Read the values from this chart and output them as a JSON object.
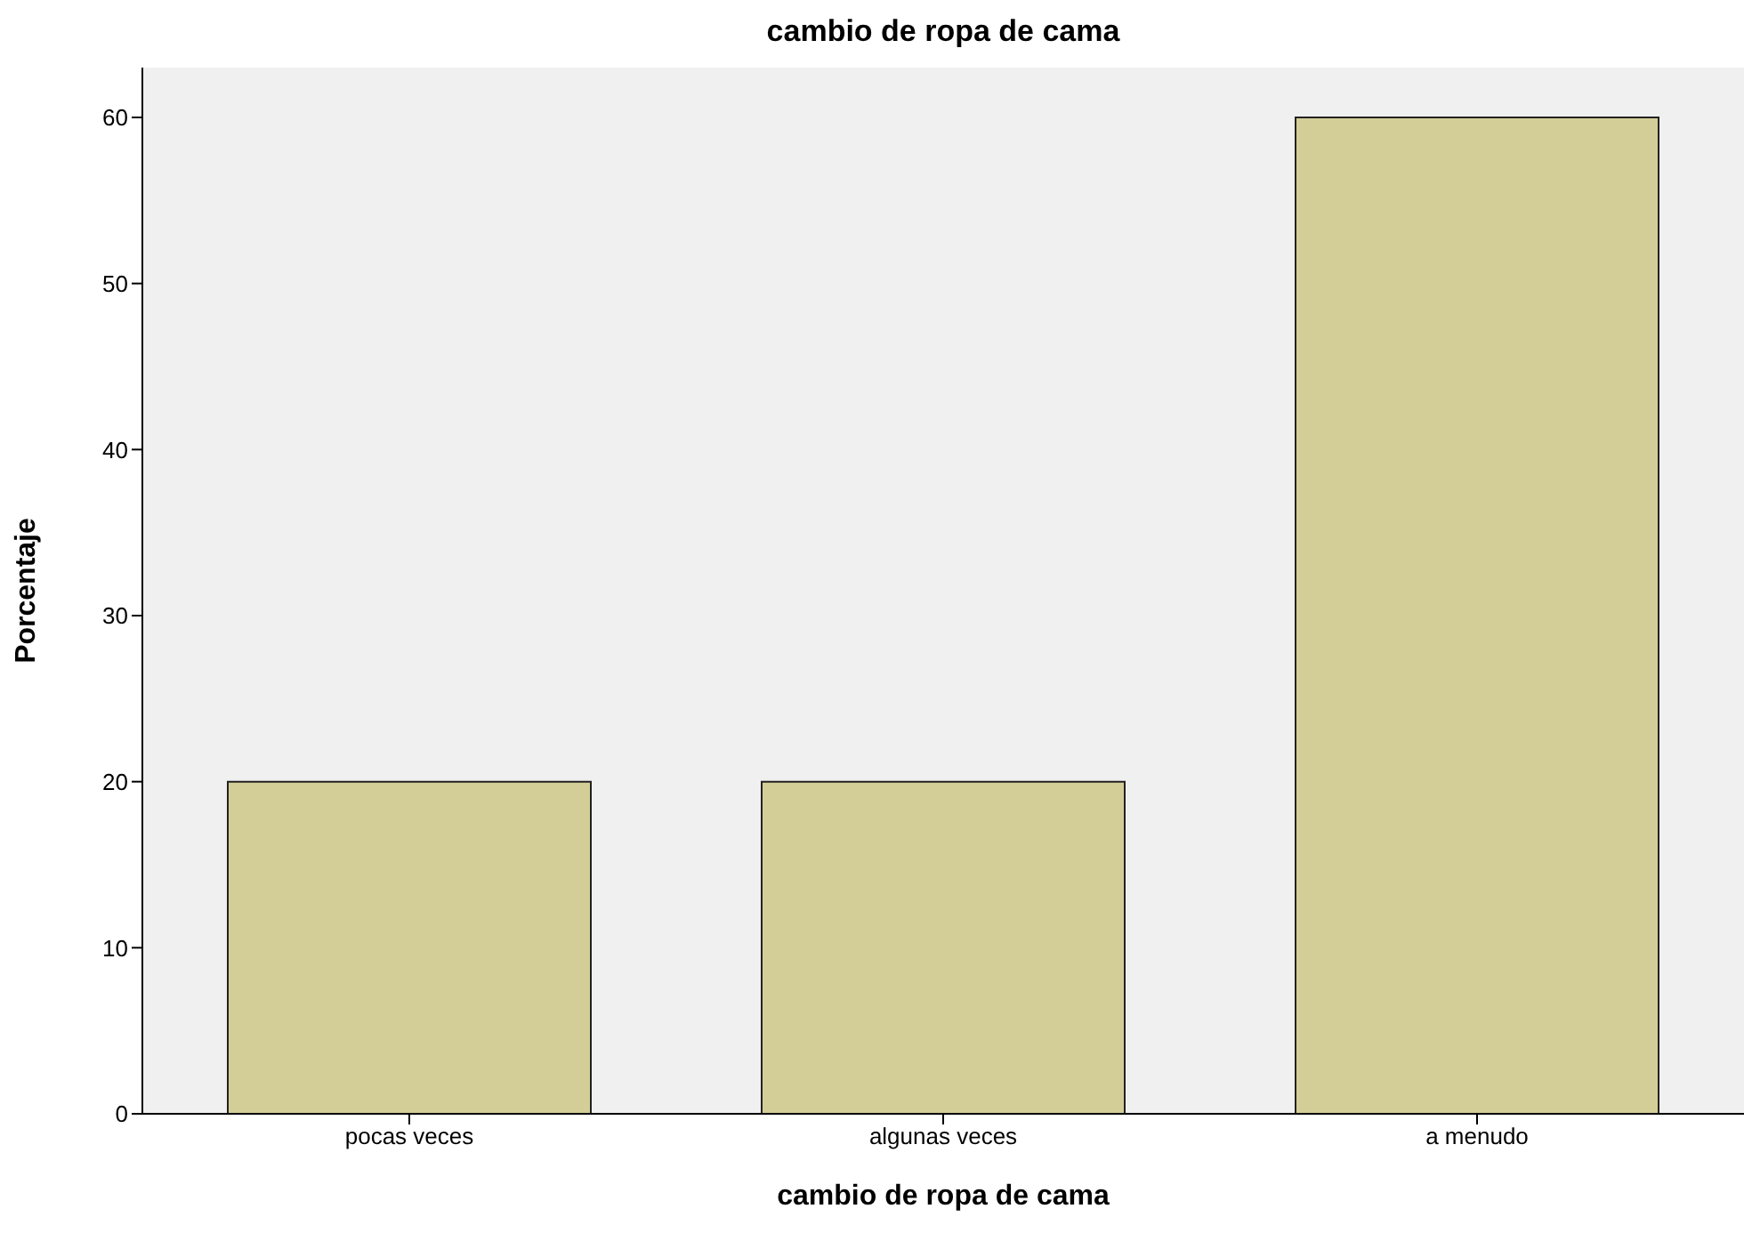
{
  "chart_data": {
    "type": "bar",
    "title": "cambio de ropa de cama",
    "xlabel": "cambio de ropa de cama",
    "ylabel": "Porcentaje",
    "categories": [
      "pocas veces",
      "algunas veces",
      "a menudo"
    ],
    "values": [
      20,
      20,
      60
    ],
    "color": "#d3ce97",
    "ylim": [
      0,
      63
    ],
    "yticks": [
      0,
      10,
      20,
      30,
      40,
      50,
      60
    ],
    "grid": false
  }
}
